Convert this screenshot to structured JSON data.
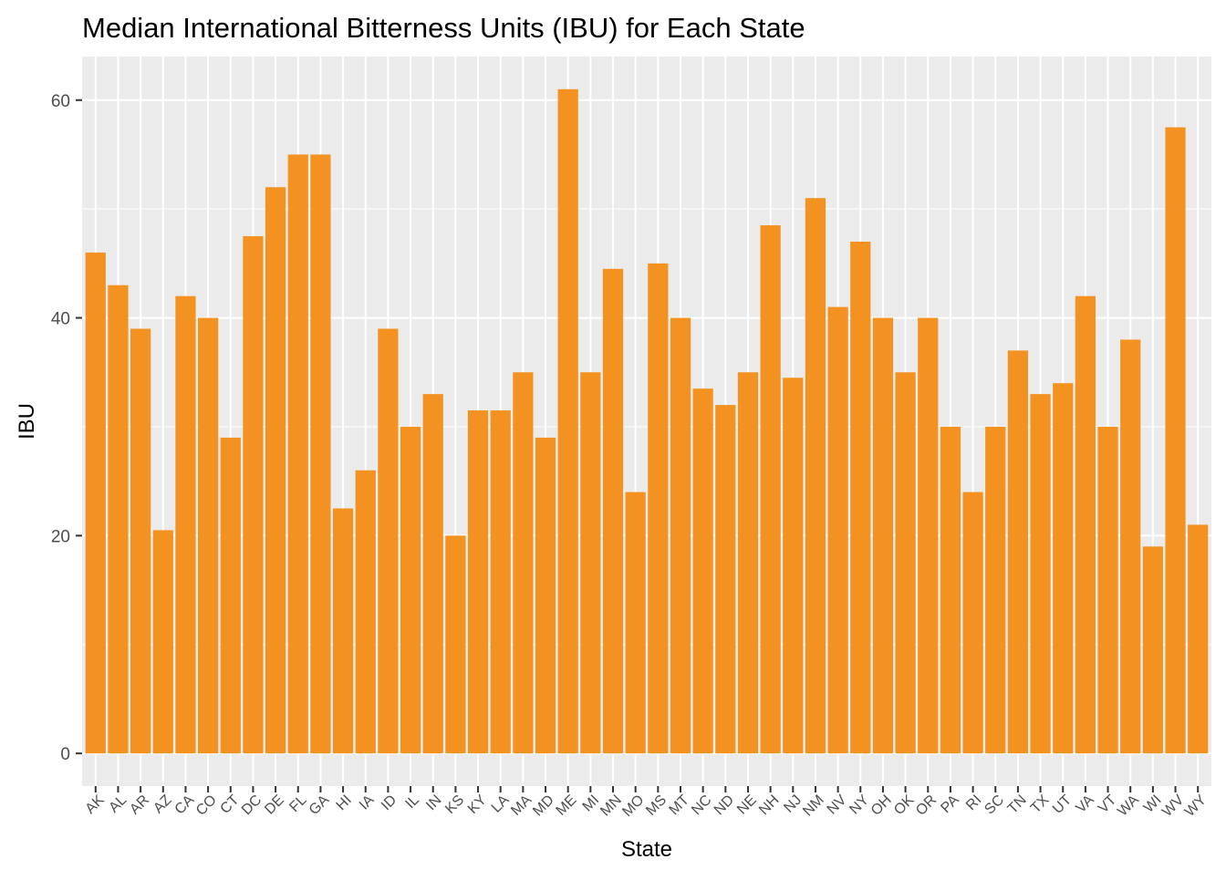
{
  "chart_data": {
    "type": "bar",
    "title": "Median International Bitterness Units (IBU) for Each State",
    "xlabel": "State",
    "ylabel": "IBU",
    "ylim": [
      -3,
      64
    ],
    "yticks": [
      0,
      20,
      40,
      60
    ],
    "grid": true,
    "bar_color": "#F39220",
    "panel_color": "#EBEBEB",
    "categories": [
      "AK",
      "AL",
      "AR",
      "AZ",
      "CA",
      "CO",
      "CT",
      "DC",
      "DE",
      "FL",
      "GA",
      "HI",
      "IA",
      "ID",
      "IL",
      "IN",
      "KS",
      "KY",
      "LA",
      "MA",
      "MD",
      "ME",
      "MI",
      "MN",
      "MO",
      "MS",
      "MT",
      "NC",
      "ND",
      "NE",
      "NH",
      "NJ",
      "NM",
      "NV",
      "NY",
      "OH",
      "OK",
      "OR",
      "PA",
      "RI",
      "SC",
      "TN",
      "TX",
      "UT",
      "VA",
      "VT",
      "WA",
      "WI",
      "WV",
      "WY"
    ],
    "values": [
      46,
      43,
      39,
      20.5,
      42,
      40,
      29,
      47.5,
      52,
      55,
      55,
      22.5,
      26,
      39,
      30,
      33,
      20,
      31.5,
      31.5,
      35,
      29,
      61,
      35,
      44.5,
      24,
      45,
      40,
      33.5,
      32,
      35,
      48.5,
      34.5,
      51,
      41,
      47,
      40,
      35,
      40,
      30,
      24,
      30,
      37,
      33,
      34,
      42,
      30,
      38,
      19,
      57.5,
      21
    ]
  }
}
